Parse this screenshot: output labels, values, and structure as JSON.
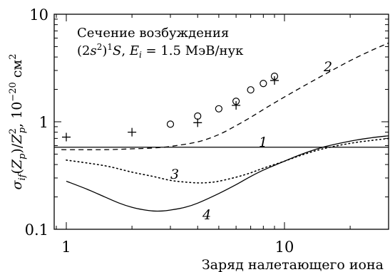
{
  "chart_data": {
    "type": "line",
    "xscale": "log",
    "yscale": "log",
    "xlim": [
      0.88,
      30
    ],
    "ylim": [
      0.1,
      10
    ],
    "grid": false,
    "xlabel": "Заряд налетающего иона",
    "ylabel": "σ_if(Z_p)/Z_p², 10⁻²⁰ см²",
    "x_ticks": [
      {
        "value": 1,
        "label": "1"
      },
      {
        "value": 10,
        "label": "10"
      }
    ],
    "y_ticks": [
      {
        "value": 0.1,
        "label": "0.1"
      },
      {
        "value": 1,
        "label": "1"
      },
      {
        "value": 10,
        "label": "10"
      }
    ],
    "annotation": {
      "line1": "Сечение возбуждения",
      "line2": "(2s²)¹S,  E_i = 1.5 МэВ/нук"
    },
    "series": [
      {
        "label": "1",
        "style": "solid",
        "x": [
          0.88,
          30
        ],
        "y": [
          0.58,
          0.58
        ]
      },
      {
        "label": "2",
        "style": "dashed",
        "x": [
          0.95,
          1.5,
          2,
          2.5,
          3,
          4,
          5,
          6,
          7,
          8,
          9,
          10,
          12,
          15,
          20,
          25,
          30
        ],
        "y": [
          0.55,
          0.55,
          0.56,
          0.57,
          0.59,
          0.65,
          0.76,
          0.92,
          1.1,
          1.3,
          1.5,
          1.7,
          2.1,
          2.7,
          3.7,
          4.6,
          5.4
        ]
      },
      {
        "label": "3",
        "style": "dotted",
        "x": [
          1,
          1.5,
          2,
          2.5,
          3,
          3.5,
          4,
          4.5,
          5,
          6,
          7,
          8,
          10,
          12,
          15,
          20,
          25,
          30
        ],
        "y": [
          0.44,
          0.39,
          0.34,
          0.31,
          0.285,
          0.275,
          0.27,
          0.272,
          0.28,
          0.305,
          0.335,
          0.37,
          0.43,
          0.49,
          0.56,
          0.63,
          0.67,
          0.7
        ]
      },
      {
        "label": "4",
        "style": "solid",
        "x": [
          1,
          1.25,
          1.5,
          1.75,
          2,
          2.25,
          2.5,
          2.75,
          3,
          3.5,
          4,
          5,
          6,
          7,
          8,
          10,
          12,
          15,
          20,
          25,
          30
        ],
        "y": [
          0.28,
          0.235,
          0.2,
          0.175,
          0.16,
          0.152,
          0.148,
          0.148,
          0.151,
          0.16,
          0.175,
          0.215,
          0.26,
          0.31,
          0.355,
          0.43,
          0.5,
          0.58,
          0.66,
          0.71,
          0.74
        ]
      }
    ],
    "markers": [
      {
        "shape": "circle",
        "x": [
          3,
          4,
          5,
          6,
          7,
          8,
          9
        ],
        "y": [
          0.95,
          1.13,
          1.32,
          1.55,
          1.98,
          2.27,
          2.65
        ]
      },
      {
        "shape": "plus",
        "x": [
          1,
          2,
          4,
          6,
          9
        ],
        "y": [
          0.72,
          0.8,
          0.98,
          1.42,
          2.42
        ]
      }
    ]
  }
}
